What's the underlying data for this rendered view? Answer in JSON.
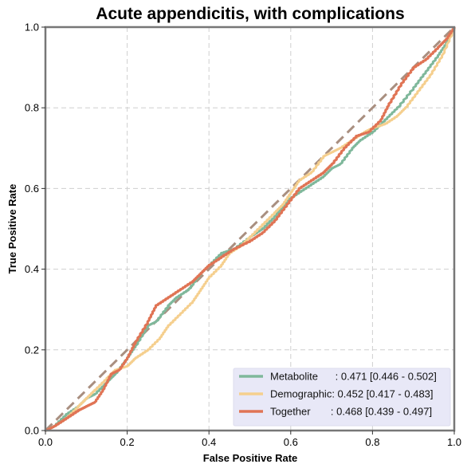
{
  "chart_data": {
    "type": "line",
    "title": "Acute appendicitis, with complications",
    "xlabel": "False Positive Rate",
    "ylabel": "True Positive Rate",
    "xlim": [
      0,
      1
    ],
    "ylim": [
      0,
      1
    ],
    "xticks": [
      "0.0",
      "0.2",
      "0.4",
      "0.6",
      "0.8",
      "1.0"
    ],
    "yticks": [
      "0.0",
      "0.2",
      "0.4",
      "0.6",
      "0.8",
      "1.0"
    ],
    "grid": true,
    "legend_position": "bottom-right",
    "reference_line": {
      "x": [
        0,
        1
      ],
      "y": [
        0,
        1
      ],
      "color": "#a98f80",
      "style": "dashed"
    },
    "series": [
      {
        "name": "Metabolite",
        "legend_label": "Metabolite      : 0.471 [0.446 - 0.502]",
        "color": "#7fb89b",
        "x": [
          0,
          0.02,
          0.05,
          0.08,
          0.1,
          0.12,
          0.15,
          0.17,
          0.2,
          0.22,
          0.25,
          0.27,
          0.3,
          0.32,
          0.35,
          0.38,
          0.4,
          0.43,
          0.46,
          0.5,
          0.53,
          0.56,
          0.59,
          0.62,
          0.65,
          0.68,
          0.7,
          0.72,
          0.75,
          0.77,
          0.8,
          0.83,
          0.86,
          0.9,
          0.93,
          0.96,
          0.98,
          1.0
        ],
        "y": [
          0,
          0.01,
          0.04,
          0.06,
          0.08,
          0.09,
          0.12,
          0.14,
          0.18,
          0.21,
          0.26,
          0.27,
          0.31,
          0.33,
          0.35,
          0.39,
          0.41,
          0.44,
          0.45,
          0.48,
          0.5,
          0.53,
          0.57,
          0.59,
          0.61,
          0.63,
          0.65,
          0.66,
          0.7,
          0.72,
          0.74,
          0.77,
          0.8,
          0.85,
          0.89,
          0.93,
          0.96,
          1.0
        ]
      },
      {
        "name": "Demographic",
        "legend_label": "Demographic: 0.452 [0.417 - 0.483]",
        "color": "#f5cf8e",
        "x": [
          0,
          0.02,
          0.05,
          0.08,
          0.1,
          0.12,
          0.15,
          0.17,
          0.2,
          0.22,
          0.25,
          0.28,
          0.3,
          0.33,
          0.36,
          0.38,
          0.4,
          0.43,
          0.45,
          0.48,
          0.5,
          0.53,
          0.56,
          0.58,
          0.6,
          0.62,
          0.65,
          0.68,
          0.7,
          0.72,
          0.75,
          0.78,
          0.8,
          0.83,
          0.86,
          0.88,
          0.91,
          0.94,
          0.97,
          1.0
        ],
        "y": [
          0,
          0.01,
          0.03,
          0.06,
          0.08,
          0.1,
          0.13,
          0.15,
          0.16,
          0.18,
          0.2,
          0.23,
          0.26,
          0.29,
          0.32,
          0.35,
          0.38,
          0.41,
          0.44,
          0.46,
          0.48,
          0.51,
          0.54,
          0.56,
          0.59,
          0.62,
          0.64,
          0.68,
          0.69,
          0.7,
          0.72,
          0.74,
          0.75,
          0.76,
          0.78,
          0.8,
          0.84,
          0.88,
          0.93,
          1.0
        ]
      },
      {
        "name": "Together",
        "legend_label": "Together       : 0.468 [0.439 - 0.497]",
        "color": "#e07455",
        "x": [
          0,
          0.02,
          0.05,
          0.08,
          0.1,
          0.12,
          0.14,
          0.16,
          0.18,
          0.2,
          0.22,
          0.25,
          0.27,
          0.3,
          0.33,
          0.36,
          0.38,
          0.4,
          0.43,
          0.46,
          0.5,
          0.53,
          0.56,
          0.59,
          0.62,
          0.65,
          0.68,
          0.7,
          0.73,
          0.76,
          0.79,
          0.82,
          0.84,
          0.87,
          0.9,
          0.93,
          0.96,
          0.98,
          1.0
        ],
        "y": [
          0,
          0.01,
          0.03,
          0.05,
          0.06,
          0.07,
          0.1,
          0.14,
          0.15,
          0.18,
          0.22,
          0.27,
          0.31,
          0.33,
          0.35,
          0.37,
          0.39,
          0.41,
          0.43,
          0.45,
          0.47,
          0.49,
          0.52,
          0.56,
          0.6,
          0.62,
          0.64,
          0.66,
          0.7,
          0.73,
          0.74,
          0.77,
          0.81,
          0.86,
          0.9,
          0.92,
          0.95,
          0.97,
          1.0
        ]
      }
    ]
  }
}
